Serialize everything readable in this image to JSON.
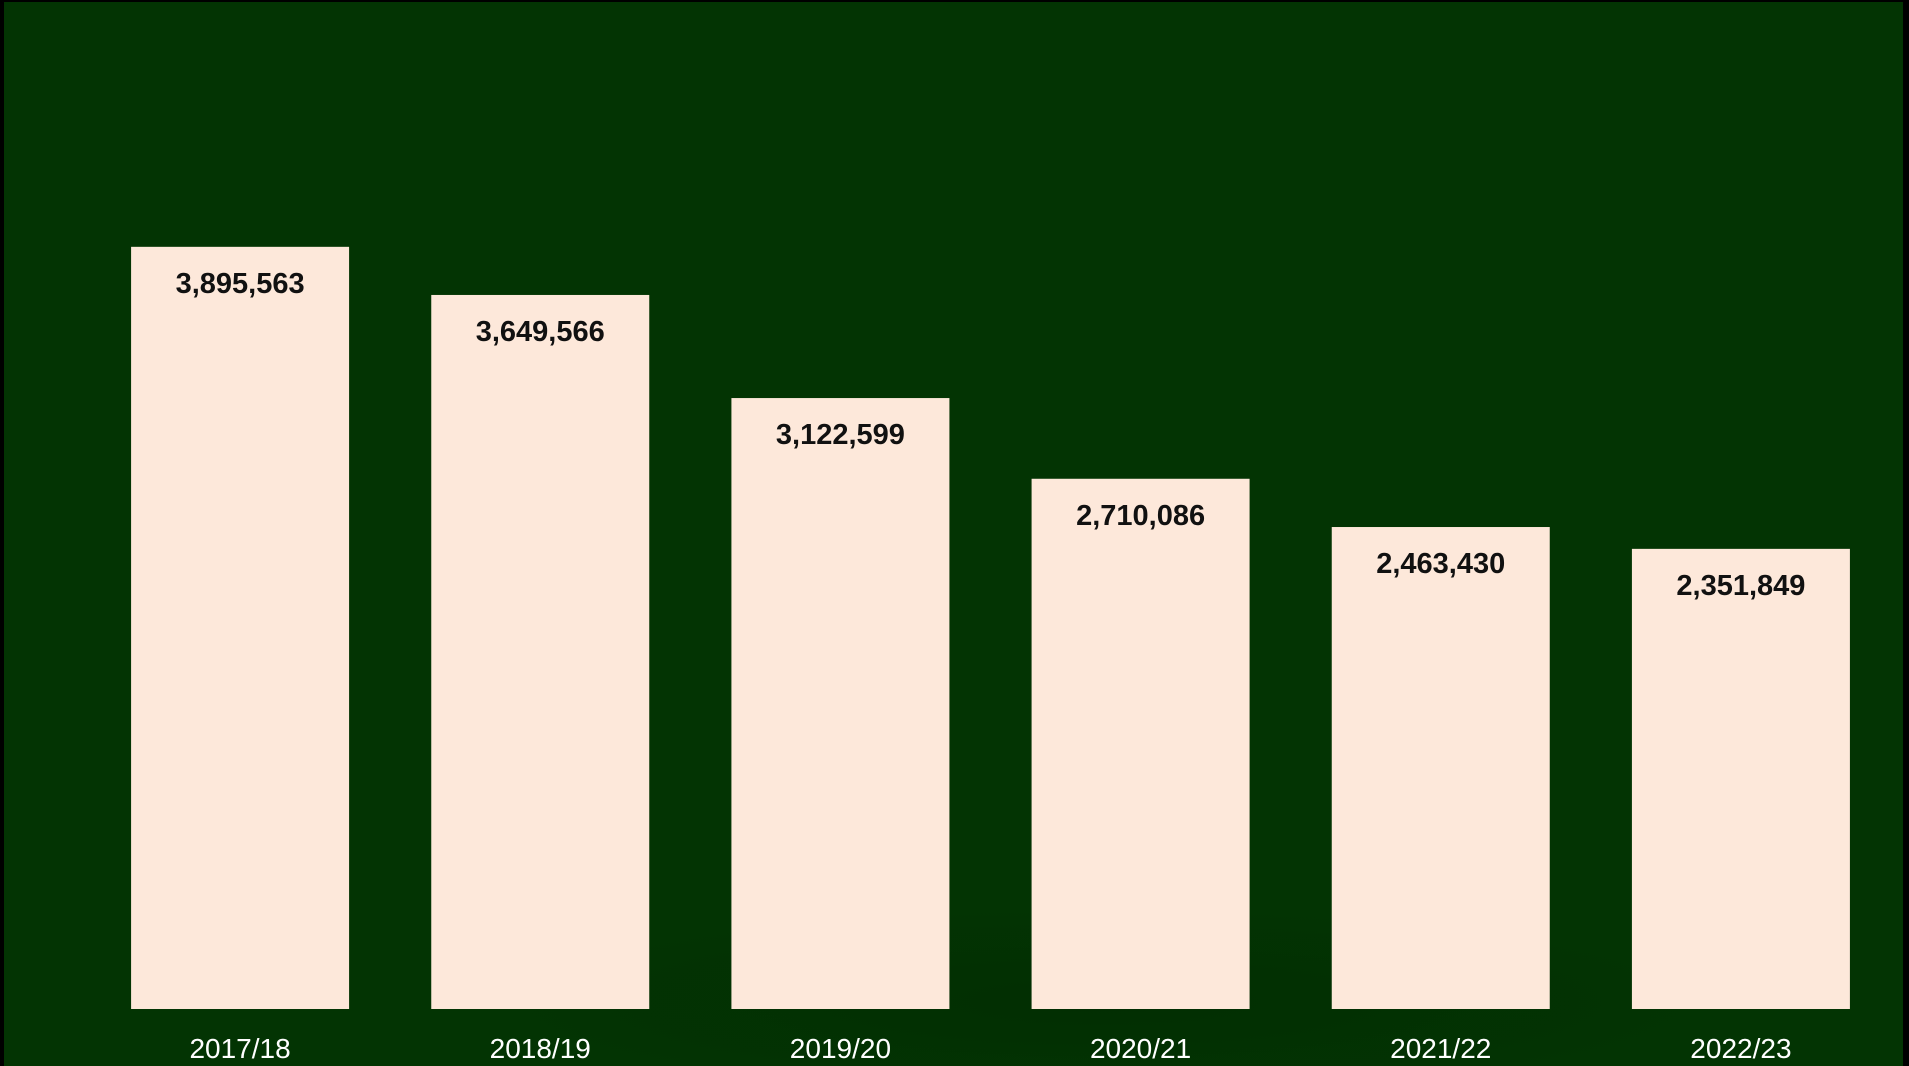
{
  "chart_data": {
    "type": "bar",
    "categories": [
      "2017/18",
      "2018/19",
      "2019/20",
      "2020/21",
      "2021/22",
      "2022/23"
    ],
    "values": [
      3895563,
      3649566,
      3122599,
      2710086,
      2463430,
      2351849
    ],
    "value_labels": [
      "3,895,563",
      "3,649,566",
      "3,122,599",
      "2,710,086",
      "2,463,430",
      "2,351,849"
    ],
    "title": "",
    "xlabel": "",
    "ylabel": "",
    "ylim": [
      0,
      4600000
    ],
    "grid": false,
    "legend": "none"
  },
  "colors": {
    "background": "#033403",
    "bar_fill": "#fde8da",
    "bar_label": "#111111",
    "category_label": "#ffffff"
  }
}
